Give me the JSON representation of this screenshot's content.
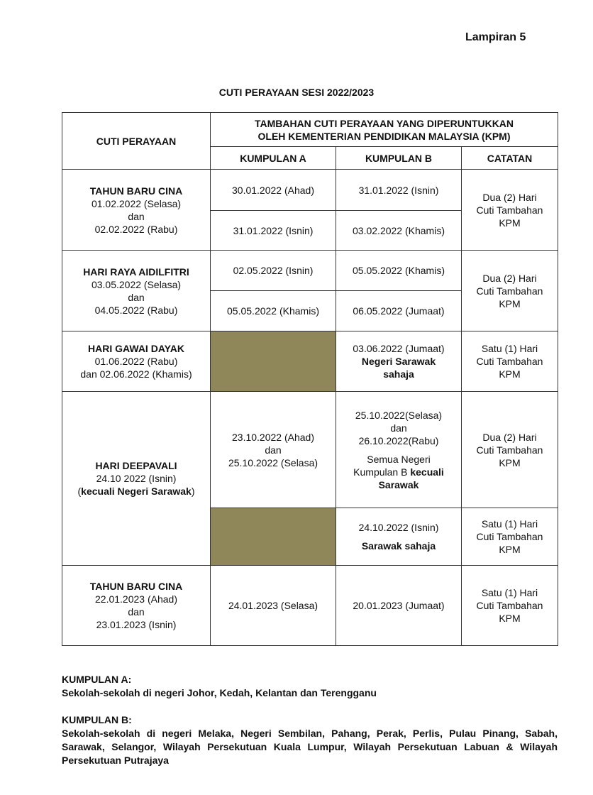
{
  "lampiran": "Lampiran 5",
  "title": "CUTI PERAYAAN SESI 2022/2023",
  "header": {
    "col1": "CUTI PERAYAAN",
    "group_line1": "TAMBAHAN CUTI PERAYAAN YANG DIPERUNTUKKAN",
    "group_line2": "OLEH KEMENTERIAN PENDIDIKAN MALAYSIA (KPM)",
    "kumpulan_a": "KUMPULAN A",
    "kumpulan_b": "KUMPULAN B",
    "catatan": "CATATAN"
  },
  "rows": {
    "tbc2022": {
      "name": "TAHUN BARU CINA",
      "d1": "01.02.2022 (Selasa)",
      "dan": "dan",
      "d2": "02.02.2022 (Rabu)",
      "a1": "30.01.2022 (Ahad)",
      "b1": "31.01.2022 (Isnin)",
      "a2": "31.01.2022 (Isnin)",
      "b2": "03.02.2022 (Khamis)",
      "note1": "Dua (2) Hari",
      "note2": "Cuti Tambahan",
      "note3": "KPM"
    },
    "raya": {
      "name": "HARI RAYA AIDILFITRI",
      "d1": "03.05.2022 (Selasa)",
      "dan": "dan",
      "d2": "04.05.2022 (Rabu)",
      "a1": "02.05.2022 (Isnin)",
      "b1": "05.05.2022 (Khamis)",
      "a2": "05.05.2022 (Khamis)",
      "b2": "06.05.2022  (Jumaat)",
      "note1": "Dua (2) Hari",
      "note2": "Cuti Tambahan",
      "note3": "KPM"
    },
    "gawai": {
      "name": "HARI GAWAI DAYAK",
      "d1": "01.06.2022 (Rabu)",
      "d2": "dan 02.06.2022 (Khamis)",
      "b1": "03.06.2022 (Jumaat)",
      "b2": "Negeri Sarawak",
      "b3": "sahaja",
      "note1": "Satu (1) Hari",
      "note2": "Cuti Tambahan",
      "note3": "KPM"
    },
    "deepavali": {
      "name": "HARI DEEPAVALI",
      "d1": "24.10 2022 (Isnin)",
      "d2_open": "(",
      "d2_bold": "kecuali Negeri Sarawak",
      "d2_close": ")",
      "a1": "23.10.2022 (Ahad)",
      "a_dan": "dan",
      "a2": "25.10.2022 (Selasa)",
      "b1": "25.10.2022(Selasa)",
      "b_dan": "dan",
      "b2": "26.10.2022(Rabu)",
      "b3": "Semua Negeri",
      "b4_plain": "Kumpulan B ",
      "b4_bold": "kecuali",
      "b5": "Sarawak",
      "note1": "Dua (2) Hari",
      "note2": "Cuti Tambahan",
      "note3": "KPM",
      "sb1": "24.10.2022 (Isnin)",
      "sb2": "Sarawak sahaja",
      "snote1": "Satu (1) Hari",
      "snote2": "Cuti Tambahan",
      "snote3": "KPM"
    },
    "tbc2023": {
      "name": "TAHUN BARU CINA",
      "d1": "22.01.2023 (Ahad)",
      "dan": "dan",
      "d2": "23.01.2023 (Isnin)",
      "a": "24.01.2023 (Selasa)",
      "b": "20.01.2023 (Jumaat)",
      "note1": "Satu (1) Hari",
      "note2": "Cuti Tambahan",
      "note3": "KPM"
    }
  },
  "shade_color": "#8f8759",
  "footer": {
    "a_title": "KUMPULAN A:",
    "a_text": "Sekolah-sekolah di negeri Johor, Kedah, Kelantan dan Terengganu",
    "b_title": "KUMPULAN B:",
    "b_text": "Sekolah-sekolah di negeri Melaka, Negeri Sembilan, Pahang, Perak, Perlis, Pulau Pinang, Sabah, Sarawak, Selangor, Wilayah Persekutuan Kuala Lumpur, Wilayah Persekutuan Labuan & Wilayah Persekutuan Putrajaya"
  }
}
